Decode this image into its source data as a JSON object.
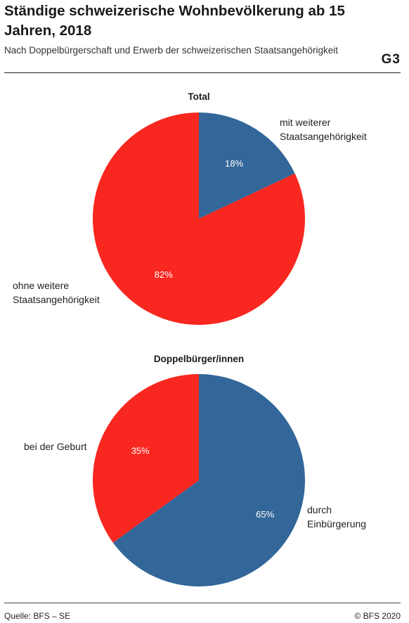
{
  "header": {
    "title": "Ständige schweizerische Wohnbevölkerung ab 15 Jahren, 2018",
    "subtitle": "Nach Doppelbürgerschaft und Erwerb der schweizerischen Staatsangehörigkeit",
    "graph_number": "G3"
  },
  "footer": {
    "source": "Quelle: BFS – SE",
    "copyright": "© BFS 2020"
  },
  "colors": {
    "blue": "#336699",
    "red": "#f8271f"
  },
  "chart_data": [
    {
      "type": "pie",
      "title": "Total",
      "slices": [
        {
          "label": "mit weiterer Staatsangehörigkeit",
          "value": 18,
          "value_label": "18%",
          "color": "#336699"
        },
        {
          "label": "ohne weitere Staatsangehörigkeit",
          "value": 82,
          "value_label": "82%",
          "color": "#f8271f"
        }
      ]
    },
    {
      "type": "pie",
      "title": "Doppelbürger/innen",
      "slices": [
        {
          "label": "durch Einbürgerung",
          "value": 65,
          "value_label": "65%",
          "color": "#336699"
        },
        {
          "label": "bei der Geburt",
          "value": 35,
          "value_label": "35%",
          "color": "#f8271f"
        }
      ]
    }
  ]
}
